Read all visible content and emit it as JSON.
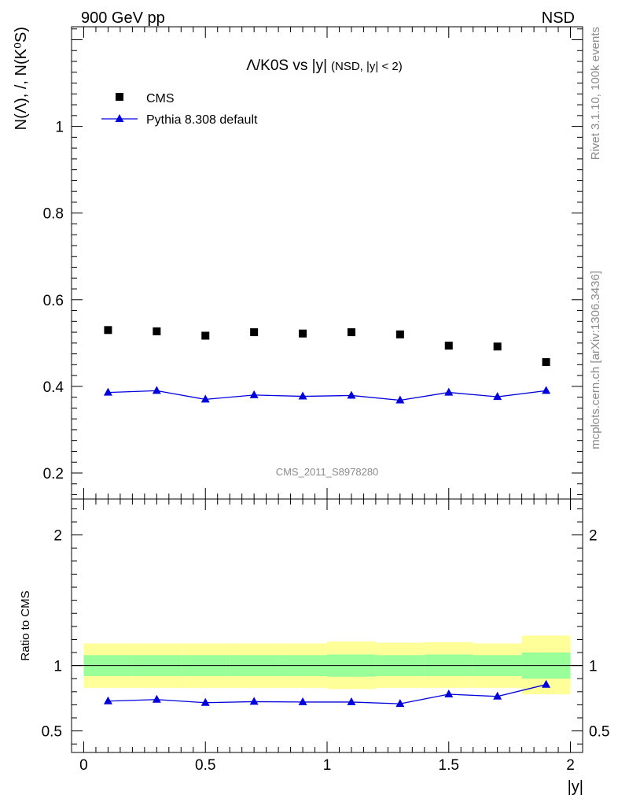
{
  "header": {
    "left": "900 GeV pp",
    "right": "NSD"
  },
  "side_labels": {
    "rivet": "Rivet 3.1.10,  100k events",
    "mcplots": "mcplots.cern.ch [arXiv:1306.3436]"
  },
  "chart_data": [
    {
      "type": "scatter",
      "title": "Λ/K0S vs |y|",
      "subtitle": "(NSD, |y| < 2)",
      "xlabel": "",
      "ylabel": "N(Λ), /, N(K⁰S)",
      "xlim": [
        -0.05,
        2.05
      ],
      "ylim": [
        0.14,
        1.23
      ],
      "y_ticks": [
        "0.2",
        "0.4",
        "0.6",
        "0.8",
        "1"
      ],
      "watermark": "CMS_2011_S8978280",
      "legend_position": "top-left",
      "x": [
        0.1,
        0.3,
        0.5,
        0.7,
        0.9,
        1.1,
        1.3,
        1.5,
        1.7,
        1.9
      ],
      "series": [
        {
          "name": "CMS",
          "marker": "square",
          "color": "#000000",
          "values": [
            0.53,
            0.527,
            0.517,
            0.525,
            0.522,
            0.525,
            0.52,
            0.494,
            0.492,
            0.456
          ]
        },
        {
          "name": "Pythia 8.308 default",
          "marker": "triangle",
          "color": "#0000dd",
          "values": [
            0.386,
            0.39,
            0.37,
            0.38,
            0.377,
            0.379,
            0.368,
            0.386,
            0.376,
            0.39
          ],
          "errors": [
            0.005,
            0.005,
            0.005,
            0.005,
            0.005,
            0.005,
            0.005,
            0.005,
            0.005,
            0.005
          ]
        }
      ]
    },
    {
      "type": "line",
      "title": "",
      "xlabel": "|y|",
      "ylabel": "Ratio to CMS",
      "xlim": [
        -0.05,
        2.05
      ],
      "ylim": [
        0.335,
        2.275
      ],
      "x_ticks": [
        "0",
        "0.5",
        "1",
        "1.5",
        "2"
      ],
      "y_ticks": [
        "0.5",
        "1",
        "2"
      ],
      "reference_line": 1,
      "x": [
        0.1,
        0.3,
        0.5,
        0.7,
        0.9,
        1.1,
        1.3,
        1.5,
        1.7,
        1.9
      ],
      "bin_edges": [
        0,
        0.2,
        0.4,
        0.6,
        0.8,
        1.0,
        1.2,
        1.4,
        1.6,
        1.8,
        2.0
      ],
      "stat_band": {
        "color": "#99ff99",
        "low": [
          0.92,
          0.92,
          0.92,
          0.92,
          0.92,
          0.915,
          0.92,
          0.92,
          0.92,
          0.9
        ],
        "high": [
          1.08,
          1.08,
          1.08,
          1.08,
          1.08,
          1.085,
          1.08,
          1.085,
          1.08,
          1.1
        ]
      },
      "total_band": {
        "color": "#ffff99",
        "low": [
          0.83,
          0.83,
          0.83,
          0.83,
          0.83,
          0.82,
          0.83,
          0.83,
          0.83,
          0.78
        ],
        "high": [
          1.17,
          1.17,
          1.17,
          1.17,
          1.17,
          1.185,
          1.175,
          1.18,
          1.17,
          1.23
        ]
      },
      "series": [
        {
          "name": "Pythia 8.308 default",
          "color": "#0000dd",
          "values": [
            0.728,
            0.74,
            0.716,
            0.724,
            0.721,
            0.721,
            0.708,
            0.781,
            0.764,
            0.855
          ]
        }
      ]
    }
  ]
}
